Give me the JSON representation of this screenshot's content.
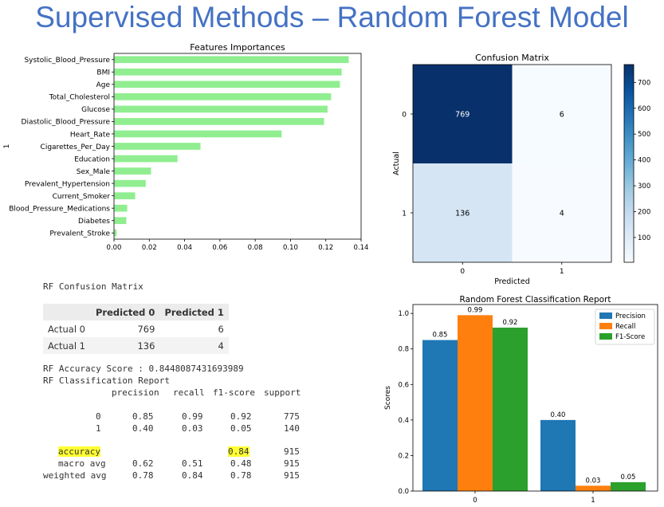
{
  "slide": {
    "title": "Supervised Methods – Random Forest Model"
  },
  "chart_data": [
    {
      "type": "bar",
      "orientation": "horizontal",
      "title": "Features Importances",
      "xlabel": "",
      "ylabel": "1",
      "categories": [
        "Systolic_Blood_Pressure",
        "BMI",
        "Age",
        "Total_Cholesterol",
        "Glucose",
        "Diastolic_Blood_Pressure",
        "Heart_Rate",
        "Cigarettes_Per_Day",
        "Education",
        "Sex_Male",
        "Prevalent_Hypertension",
        "Current_Smoker",
        "Blood_Pressure_Medications",
        "Diabetes",
        "Prevalent_Stroke"
      ],
      "values": [
        0.133,
        0.129,
        0.128,
        0.123,
        0.121,
        0.119,
        0.095,
        0.049,
        0.036,
        0.021,
        0.018,
        0.012,
        0.0075,
        0.007,
        0.0015
      ],
      "xlim": [
        0,
        0.14
      ],
      "xticks": [
        "0.00",
        "0.02",
        "0.04",
        "0.06",
        "0.08",
        "0.10",
        "0.12",
        "0.14"
      ],
      "color": "#90ee90"
    },
    {
      "type": "heatmap",
      "title": "Confusion Matrix",
      "xlabel": "Predicted",
      "ylabel": "Actual",
      "x_categories": [
        "0",
        "1"
      ],
      "y_categories": [
        "0",
        "1"
      ],
      "values": [
        [
          769,
          6
        ],
        [
          136,
          4
        ]
      ],
      "colorbar_ticks": [
        "100",
        "200",
        "300",
        "400",
        "500",
        "600",
        "700"
      ],
      "colorbar_range": [
        4,
        769
      ]
    },
    {
      "type": "bar",
      "title": "Random Forest Classification Report",
      "ylabel": "Scores",
      "xlabel": "",
      "categories": [
        "0",
        "1"
      ],
      "series": [
        {
          "name": "Precision",
          "values": [
            0.85,
            0.4
          ],
          "labels": [
            "0.85",
            "0.40"
          ],
          "color": "#1f77b4"
        },
        {
          "name": "Recall",
          "values": [
            0.99,
            0.03
          ],
          "labels": [
            "0.99",
            "0.03"
          ],
          "color": "#ff7f0e"
        },
        {
          "name": "F1-Score",
          "values": [
            0.92,
            0.05
          ],
          "labels": [
            "0.92",
            "0.05"
          ],
          "color": "#2ca02c"
        }
      ],
      "ylim": [
        0,
        1.05
      ],
      "yticks": [
        "0.0",
        "0.2",
        "0.4",
        "0.6",
        "0.8",
        "1.0"
      ],
      "legend": "top-right"
    }
  ],
  "report": {
    "cm_heading": "RF Confusion Matrix",
    "cm_table": {
      "headers": [
        "",
        "Predicted 0",
        "Predicted 1"
      ],
      "rows": [
        {
          "label": "Actual 0",
          "values": [
            "769",
            "6"
          ]
        },
        {
          "label": "Actual 1",
          "values": [
            "136",
            "4"
          ]
        }
      ]
    },
    "accuracy_line": "RF Accuracy Score : 0.8448087431693989",
    "classification_heading": "RF Classification Report",
    "col_headers": [
      "precision",
      "recall",
      "f1-score",
      "support"
    ],
    "rows": [
      {
        "label": "0",
        "values": [
          "0.85",
          "0.99",
          "0.92",
          "775"
        ]
      },
      {
        "label": "1",
        "values": [
          "0.40",
          "0.03",
          "0.05",
          "140"
        ]
      }
    ],
    "accuracy_row": {
      "label": "accuracy",
      "f1": "0.84",
      "support": "915"
    },
    "avg_rows": [
      {
        "label": "macro avg",
        "values": [
          "0.62",
          "0.51",
          "0.48",
          "915"
        ]
      },
      {
        "label": "weighted avg",
        "values": [
          "0.78",
          "0.84",
          "0.78",
          "915"
        ]
      }
    ]
  }
}
